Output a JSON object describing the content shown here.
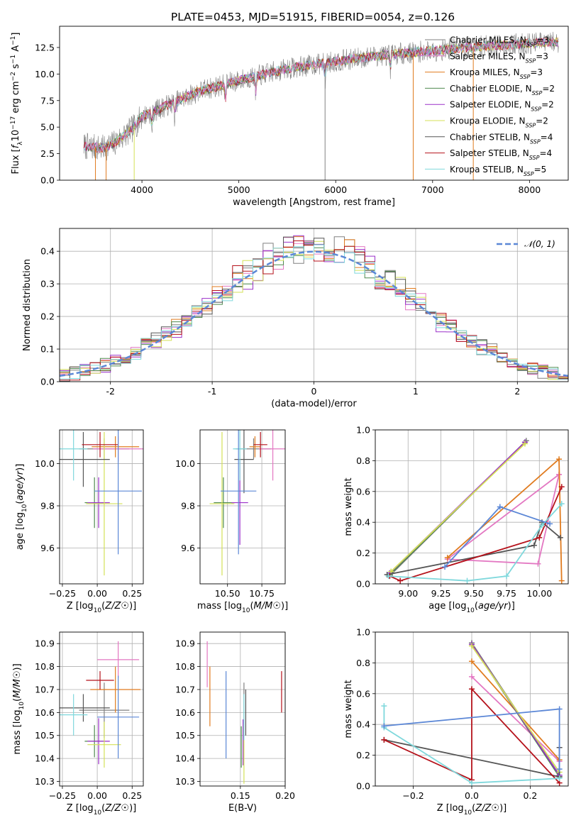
{
  "figure": {
    "title": "PLATE=0453, MJD=51915, FIBERID=0054, z=0.126",
    "models": [
      "Chabrier MILES",
      "Salpeter MILES",
      "Kroupa MILES",
      "Chabrier ELODIE",
      "Salpeter ELODIE",
      "Kroupa ELODIE",
      "Chabrier STELIB",
      "Salpeter STELIB",
      "Kroupa STELIB"
    ],
    "legend_nssp": [
      "N$_{SSP}$=3",
      "N$_{SSP}$=3",
      "N$_{SSP}$=3",
      "N$_{SSP}$=2",
      "N$_{SSP}$=2",
      "N$_{SSP}$=2",
      "N$_{SSP}$=4",
      "N$_{SSP}$=4",
      "N$_{SSP}$=5"
    ],
    "colors": [
      "#808080",
      "#e377c2",
      "#e07b1f",
      "#4f8a4f",
      "#9b30c9",
      "#d4e157",
      "#555555",
      "#b5121b",
      "#7fd8dc"
    ]
  },
  "chart_data": [
    {
      "type": "line",
      "panel": "spectrum",
      "xlabel": "wavelength [Angstrom, rest frame]",
      "ylabel": "Flux [f_λ 10^-17 erg cm^-2 s^-1 A^-1]",
      "xlim": [
        3150,
        8400
      ],
      "ylim": [
        0,
        14.5
      ],
      "xticks": [
        4000,
        5000,
        6000,
        7000,
        8000
      ],
      "yticks": [
        0.0,
        2.5,
        5.0,
        7.5,
        10.0,
        12.5
      ],
      "x_range": [
        3400,
        8300
      ],
      "continuum": [
        [
          3400,
          3.2
        ],
        [
          3600,
          3.0
        ],
        [
          3700,
          3.4
        ],
        [
          3900,
          4.8
        ],
        [
          4000,
          6.0
        ],
        [
          4300,
          7.2
        ],
        [
          4600,
          8.4
        ],
        [
          5000,
          9.4
        ],
        [
          5500,
          10.5
        ],
        [
          6000,
          11.2
        ],
        [
          6500,
          11.8
        ],
        [
          7000,
          12.2
        ],
        [
          7500,
          12.6
        ],
        [
          8000,
          12.9
        ],
        [
          8300,
          13.0
        ]
      ],
      "legend_position": "right",
      "legend_entries": [
        "Chabrier MILES, N_SSP=3",
        "Salpeter MILES, N_SSP=3",
        "Kroupa MILES, N_SSP=3",
        "Chabrier ELODIE, N_SSP=2",
        "Salpeter ELODIE, N_SSP=2",
        "Kroupa ELODIE, N_SSP=2",
        "Chabrier STELIB, N_SSP=4",
        "Salpeter STELIB, N_SSP=4",
        "Kroupa STELIB, N_SSP=5"
      ]
    },
    {
      "type": "histogram",
      "panel": "residuals",
      "xlabel": "(data-model)/error",
      "ylabel": "Normed distribution",
      "xlim": [
        -2.5,
        2.5
      ],
      "ylim": [
        0,
        0.47
      ],
      "xticks": [
        -2,
        -1,
        0,
        1,
        2
      ],
      "yticks": [
        0.0,
        0.1,
        0.2,
        0.3,
        0.4
      ],
      "grid": true,
      "bin_width": 0.1,
      "reference_curve": {
        "name": "𝒩(0, 1)",
        "style": "dashed",
        "color": "#5b87d6"
      },
      "legend_position": "top-right"
    },
    {
      "type": "errorbar",
      "panel": "age-vs-Z",
      "xlabel": "Z [log10(Z/Z☉)]",
      "ylabel": "age [log10(age/yr)]",
      "xlim": [
        -0.27,
        0.33
      ],
      "ylim": [
        9.43,
        10.16
      ],
      "xticks": [
        -0.25,
        0.0,
        0.25
      ],
      "xticklabels": [
        "−0.25",
        "0.00",
        "0.25"
      ],
      "yticks": [
        9.6,
        9.8,
        10.0
      ],
      "yticklabels": [
        "9.6",
        "9.8",
        "10.0"
      ],
      "grid": true,
      "points": [
        {
          "x": 0.05,
          "y": 10.07,
          "xe": 0.18,
          "ye": 0.05,
          "color": "#808080"
        },
        {
          "x": 0.15,
          "y": 10.07,
          "xe": 0.18,
          "ye": 0.06,
          "color": "#e377c2"
        },
        {
          "x": 0.13,
          "y": 10.08,
          "xe": 0.17,
          "ye": 0.05,
          "color": "#e07b1f"
        },
        {
          "x": -0.02,
          "y": 9.815,
          "xe": 0.07,
          "ye": 0.12,
          "color": "#4f8a4f"
        },
        {
          "x": 0.01,
          "y": 9.815,
          "xe": 0.08,
          "ye": 0.12,
          "color": "#9b30c9"
        },
        {
          "x": 0.05,
          "y": 9.81,
          "xe": 0.13,
          "ye": 0.34,
          "color": "#d4e157"
        },
        {
          "x": -0.1,
          "y": 10.02,
          "xe": 0.19,
          "ye": 0.13,
          "color": "#555555"
        },
        {
          "x": 0.02,
          "y": 10.09,
          "xe": 0.13,
          "ye": 0.06,
          "color": "#b5121b"
        },
        {
          "x": -0.17,
          "y": 10.07,
          "xe": 0.1,
          "ye": 0.15,
          "color": "#7fd8dc"
        },
        {
          "x": 0.15,
          "y": 9.87,
          "xe": 0.17,
          "ye": 0.3,
          "color": "#5b87d6"
        }
      ]
    },
    {
      "type": "errorbar",
      "panel": "age-vs-mass",
      "xlabel": "mass [log10(M/M☉)]",
      "ylabel": "",
      "xlim": [
        10.3,
        10.92
      ],
      "ylim": [
        9.43,
        10.16
      ],
      "xticks": [
        10.5,
        10.75
      ],
      "xticklabels": [
        "10.50",
        "10.75"
      ],
      "yticks": [
        9.6,
        9.8,
        10.0
      ],
      "yticklabels": [
        "9.6",
        "9.8",
        "10.0"
      ],
      "grid": true,
      "points": [
        {
          "x": 10.69,
          "y": 10.07,
          "xe": 0.13,
          "ye": 0.05,
          "color": "#808080"
        },
        {
          "x": 10.83,
          "y": 10.07,
          "xe": 0.1,
          "ye": 0.15,
          "color": "#e377c2"
        },
        {
          "x": 10.7,
          "y": 10.08,
          "xe": 0.04,
          "ye": 0.05,
          "color": "#e07b1f"
        },
        {
          "x": 10.47,
          "y": 9.815,
          "xe": 0.07,
          "ye": 0.12,
          "color": "#4f8a4f"
        },
        {
          "x": 10.59,
          "y": 9.815,
          "xe": 0.06,
          "ye": 0.2,
          "color": "#9b30c9"
        },
        {
          "x": 10.46,
          "y": 9.81,
          "xe": 0.09,
          "ye": 0.34,
          "color": "#d4e157"
        },
        {
          "x": 10.62,
          "y": 10.02,
          "xe": 0.07,
          "ye": 0.16,
          "color": "#555555"
        },
        {
          "x": 10.74,
          "y": 10.09,
          "xe": 0.05,
          "ye": 0.06,
          "color": "#b5121b"
        },
        {
          "x": 10.59,
          "y": 10.07,
          "xe": 0.05,
          "ye": 0.15,
          "color": "#7fd8dc"
        },
        {
          "x": 10.58,
          "y": 9.87,
          "xe": 0.13,
          "ye": 0.3,
          "color": "#5b87d6"
        }
      ]
    },
    {
      "type": "line",
      "panel": "weight-vs-age",
      "xlabel": "age [log10(age/yr)]",
      "ylabel": "mass weight",
      "xlim": [
        8.75,
        10.22
      ],
      "ylim": [
        0,
        1.0
      ],
      "xticks": [
        9.0,
        9.25,
        9.5,
        9.75,
        10.0
      ],
      "xticklabels": [
        "9.00",
        "9.25",
        "9.50",
        "9.75",
        "10.00"
      ],
      "yticks": [
        0,
        0.2,
        0.4,
        0.6,
        0.8,
        1.0
      ],
      "yticklabels": [
        "0.0",
        "0.2",
        "0.4",
        "0.6",
        "0.8",
        "1.0"
      ],
      "grid": true,
      "series": [
        {
          "color": "#808080",
          "points": [
            [
              9.9,
              0.93
            ],
            [
              8.88,
              0.07
            ]
          ]
        },
        {
          "color": "#e377c2",
          "points": [
            [
              10.15,
              0.71
            ],
            [
              9.99,
              0.13
            ],
            [
              9.3,
              0.16
            ],
            [
              10.15,
              0.71
            ]
          ]
        },
        {
          "color": "#e07b1f",
          "points": [
            [
              9.3,
              0.17
            ],
            [
              10.15,
              0.81
            ],
            [
              10.17,
              0.02
            ]
          ]
        },
        {
          "color": "#4f8a4f",
          "points": [
            [
              9.89,
              0.92
            ],
            [
              8.86,
              0.06
            ]
          ]
        },
        {
          "color": "#9b30c9",
          "points": [
            [
              9.89,
              0.92
            ],
            [
              8.86,
              0.07
            ]
          ]
        },
        {
          "color": "#d4e157",
          "points": [
            [
              9.89,
              0.91
            ],
            [
              8.87,
              0.08
            ]
          ]
        },
        {
          "color": "#555555",
          "points": [
            [
              10.16,
              0.3
            ],
            [
              10.02,
              0.4
            ],
            [
              9.96,
              0.25
            ],
            [
              8.84,
              0.06
            ]
          ]
        },
        {
          "color": "#b5121b",
          "points": [
            [
              10.17,
              0.63
            ],
            [
              10.0,
              0.3
            ],
            [
              8.94,
              0.02
            ],
            [
              8.86,
              0.05
            ]
          ]
        },
        {
          "color": "#7fd8dc",
          "points": [
            [
              10.17,
              0.52
            ],
            [
              10.02,
              0.38
            ],
            [
              9.75,
              0.05
            ],
            [
              9.45,
              0.02
            ],
            [
              8.85,
              0.05
            ]
          ]
        },
        {
          "color": "#5b87d6",
          "points": [
            [
              9.28,
              0.11
            ],
            [
              9.7,
              0.5
            ],
            [
              10.08,
              0.39
            ]
          ]
        }
      ]
    },
    {
      "type": "errorbar",
      "panel": "mass-vs-Z",
      "xlabel": "Z [log10(Z/Z☉)]",
      "ylabel": "mass [log10(M/M☉)]",
      "xlim": [
        -0.27,
        0.33
      ],
      "ylim": [
        10.28,
        10.95
      ],
      "xticks": [
        -0.25,
        0.0,
        0.25
      ],
      "xticklabels": [
        "−0.25",
        "0.00",
        "0.25"
      ],
      "yticks": [
        10.3,
        10.4,
        10.5,
        10.6,
        10.7,
        10.8,
        10.9
      ],
      "yticklabels": [
        "10.3",
        "10.4",
        "10.5",
        "10.6",
        "10.7",
        "10.8",
        "10.9"
      ],
      "grid": true,
      "points": [
        {
          "x": 0.05,
          "y": 10.61,
          "xe": 0.18,
          "ye": 0.12,
          "color": "#808080"
        },
        {
          "x": 0.15,
          "y": 10.83,
          "xe": 0.15,
          "ye": 0.08,
          "color": "#e377c2"
        },
        {
          "x": 0.13,
          "y": 10.7,
          "xe": 0.18,
          "ye": 0.1,
          "color": "#e07b1f"
        },
        {
          "x": -0.02,
          "y": 10.475,
          "xe": 0.07,
          "ye": 0.07,
          "color": "#4f8a4f"
        },
        {
          "x": 0.01,
          "y": 10.475,
          "xe": 0.08,
          "ye": 0.1,
          "color": "#9b30c9"
        },
        {
          "x": 0.05,
          "y": 10.46,
          "xe": 0.12,
          "ye": 0.1,
          "color": "#d4e157"
        },
        {
          "x": -0.1,
          "y": 10.62,
          "xe": 0.19,
          "ye": 0.06,
          "color": "#555555"
        },
        {
          "x": 0.02,
          "y": 10.74,
          "xe": 0.1,
          "ye": 0.04,
          "color": "#b5121b"
        },
        {
          "x": -0.17,
          "y": 10.59,
          "xe": 0.1,
          "ye": 0.09,
          "color": "#7fd8dc"
        },
        {
          "x": 0.15,
          "y": 10.58,
          "xe": 0.15,
          "ye": 0.18,
          "color": "#5b87d6"
        }
      ]
    },
    {
      "type": "errorbar",
      "panel": "mass-vs-EBV",
      "xlabel": "E(B-V)",
      "ylabel": "",
      "xlim": [
        0.105,
        0.2
      ],
      "ylim": [
        10.28,
        10.95
      ],
      "xticks": [
        0.15,
        0.2
      ],
      "xticklabels": [
        "0.15",
        "0.20"
      ],
      "yticks": [
        10.3,
        10.4,
        10.5,
        10.6,
        10.7,
        10.8,
        10.9
      ],
      "yticklabels": [
        "10.3",
        "10.4",
        "10.5",
        "10.6",
        "10.7",
        "10.8",
        "10.9"
      ],
      "grid": true,
      "points": [
        {
          "x": 0.154,
          "y": 10.61,
          "xe": 0,
          "ye": 0.12,
          "color": "#808080"
        },
        {
          "x": 0.113,
          "y": 10.81,
          "xe": 0,
          "ye": 0.1,
          "color": "#e377c2"
        },
        {
          "x": 0.116,
          "y": 10.67,
          "xe": 0,
          "ye": 0.13,
          "color": "#e07b1f"
        },
        {
          "x": 0.151,
          "y": 10.45,
          "xe": 0,
          "ye": 0.09,
          "color": "#4f8a4f"
        },
        {
          "x": 0.153,
          "y": 10.47,
          "xe": 0,
          "ye": 0.1,
          "color": "#9b30c9"
        },
        {
          "x": 0.154,
          "y": 10.42,
          "xe": 0,
          "ye": 0.13,
          "color": "#d4e157"
        },
        {
          "x": 0.156,
          "y": 10.6,
          "xe": 0,
          "ye": 0.1,
          "color": "#555555"
        },
        {
          "x": 0.196,
          "y": 10.69,
          "xe": 0,
          "ye": 0.09,
          "color": "#b5121b"
        },
        {
          "x": 0.154,
          "y": 10.58,
          "xe": 0,
          "ye": 0.1,
          "color": "#7fd8dc"
        },
        {
          "x": 0.134,
          "y": 10.59,
          "xe": 0,
          "ye": 0.19,
          "color": "#5b87d6"
        }
      ]
    },
    {
      "type": "line",
      "panel": "weight-vs-Z",
      "xlabel": "Z [log10(Z/Z☉)]",
      "ylabel": "mass weight",
      "xlim": [
        -0.33,
        0.33
      ],
      "ylim": [
        0,
        1.0
      ],
      "xticks": [
        -0.2,
        0.0,
        0.2
      ],
      "xticklabels": [
        "−0.2",
        "0.0",
        "0.2"
      ],
      "yticks": [
        0,
        0.2,
        0.4,
        0.6,
        0.8,
        1.0
      ],
      "yticklabels": [
        "0.0",
        "0.2",
        "0.4",
        "0.6",
        "0.8",
        "1.0"
      ],
      "grid": true,
      "series": [
        {
          "color": "#808080",
          "points": [
            [
              0.0,
              0.93
            ],
            [
              0.3,
              0.07
            ]
          ]
        },
        {
          "color": "#e377c2",
          "points": [
            [
              0.0,
              0.71
            ],
            [
              0.3,
              0.16
            ]
          ]
        },
        {
          "color": "#e07b1f",
          "points": [
            [
              0.0,
              0.81
            ],
            [
              0.3,
              0.17
            ]
          ]
        },
        {
          "color": "#4f8a4f",
          "points": [
            [
              0.0,
              0.92
            ],
            [
              0.3,
              0.06
            ]
          ]
        },
        {
          "color": "#9b30c9",
          "points": [
            [
              0.0,
              0.92
            ],
            [
              0.3,
              0.07
            ]
          ]
        },
        {
          "color": "#d4e157",
          "points": [
            [
              0.0,
              0.91
            ],
            [
              0.3,
              0.09
            ]
          ]
        },
        {
          "color": "#555555",
          "points": [
            [
              -0.3,
              0.3
            ],
            [
              0.3,
              0.06
            ],
            [
              0.3,
              0.25
            ]
          ]
        },
        {
          "color": "#b5121b",
          "points": [
            [
              -0.3,
              0.3
            ],
            [
              0.0,
              0.04
            ],
            [
              0.0,
              0.63
            ],
            [
              0.3,
              0.02
            ]
          ]
        },
        {
          "color": "#7fd8dc",
          "points": [
            [
              -0.3,
              0.52
            ],
            [
              -0.3,
              0.38
            ],
            [
              0.0,
              0.02
            ],
            [
              0.3,
              0.05
            ]
          ]
        },
        {
          "color": "#5b87d6",
          "points": [
            [
              -0.3,
              0.39
            ],
            [
              0.3,
              0.5
            ],
            [
              0.3,
              0.11
            ]
          ]
        }
      ]
    }
  ]
}
